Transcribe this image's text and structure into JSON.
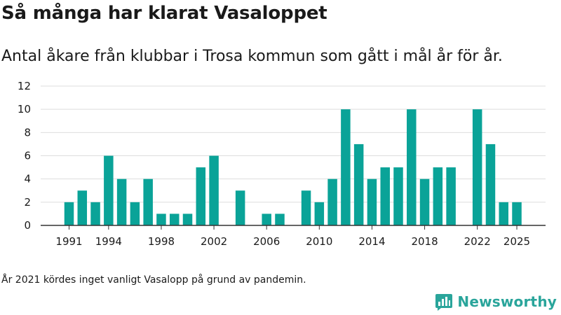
{
  "header": {
    "title": "Så många har klarat Vasaloppet",
    "subtitle": "Antal åkare från klubbar i Trosa kommun som gått i mål år för år."
  },
  "footer": {
    "note": "År 2021 kördes inget vanligt Vasalopp på grund av pandemin.",
    "brand": "Newsworthy",
    "brand_icon": "newsworthy-logo-icon"
  },
  "colors": {
    "bar": "#0aa398",
    "brand": "#2aa59b",
    "grid": "#dddddd",
    "axis": "#333333",
    "text": "#1a1a1a"
  },
  "chart_data": {
    "type": "bar",
    "title": "",
    "xlabel": "",
    "ylabel": "",
    "ylim": [
      0,
      12
    ],
    "y_ticks": [
      0,
      2,
      4,
      6,
      8,
      10,
      12
    ],
    "x_tick_labels": [
      1991,
      1994,
      1998,
      2002,
      2006,
      2010,
      2014,
      2018,
      2022,
      2025
    ],
    "grid": true,
    "legend": "none",
    "categories": [
      1991,
      1992,
      1993,
      1994,
      1995,
      1996,
      1997,
      1998,
      1999,
      2000,
      2001,
      2002,
      2003,
      2004,
      2005,
      2006,
      2007,
      2008,
      2009,
      2010,
      2011,
      2012,
      2013,
      2014,
      2015,
      2016,
      2017,
      2018,
      2019,
      2020,
      2021,
      2022,
      2023,
      2024,
      2025
    ],
    "values": [
      2,
      3,
      2,
      6,
      4,
      2,
      4,
      1,
      1,
      1,
      5,
      6,
      null,
      3,
      null,
      1,
      1,
      null,
      3,
      2,
      4,
      10,
      7,
      4,
      5,
      5,
      10,
      4,
      5,
      5,
      null,
      10,
      7,
      2,
      2
    ]
  }
}
